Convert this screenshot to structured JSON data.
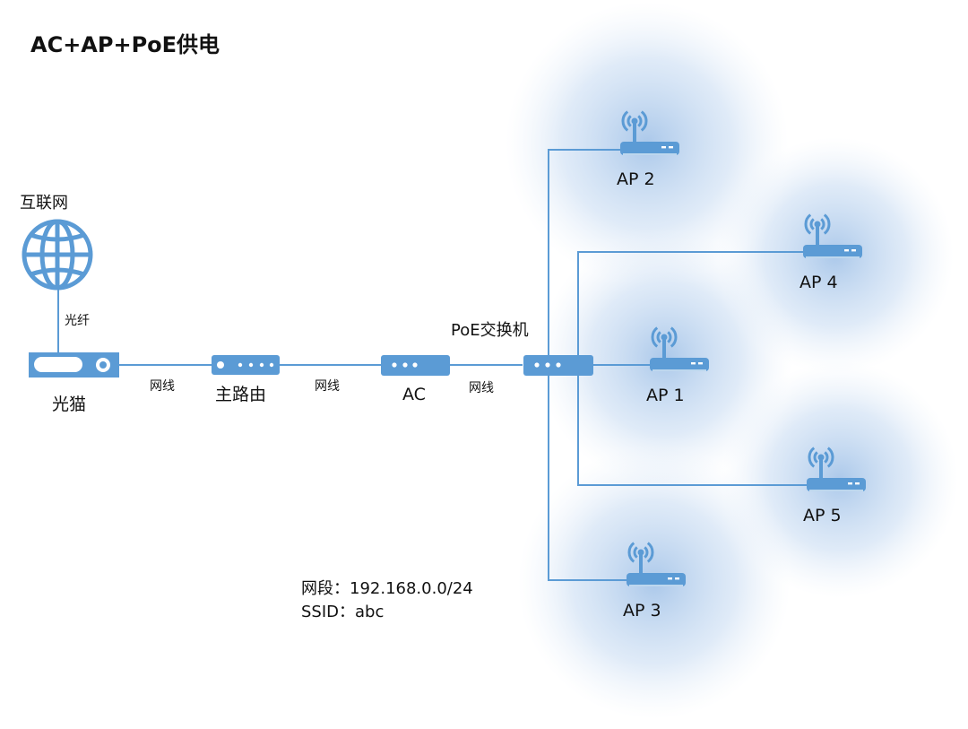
{
  "title": "AC+AP+PoE供电",
  "colors": {
    "device": "#5b9bd5",
    "line": "#5b9bd5",
    "coverage": "#a9c8ea"
  },
  "nodes": {
    "internet": "互联网",
    "modem": "光猫",
    "router": "主路由",
    "ac": "AC",
    "switch": "PoE交换机"
  },
  "links": {
    "fiber": "光纤",
    "cable1": "网线",
    "cable2": "网线",
    "cable3": "网线"
  },
  "aps": [
    {
      "label": "AP 2"
    },
    {
      "label": "AP 4"
    },
    {
      "label": "AP 1"
    },
    {
      "label": "AP 5"
    },
    {
      "label": "AP 3"
    }
  ],
  "network": {
    "segment": "网段：192.168.0.0/24",
    "ssid": "SSID：abc"
  }
}
